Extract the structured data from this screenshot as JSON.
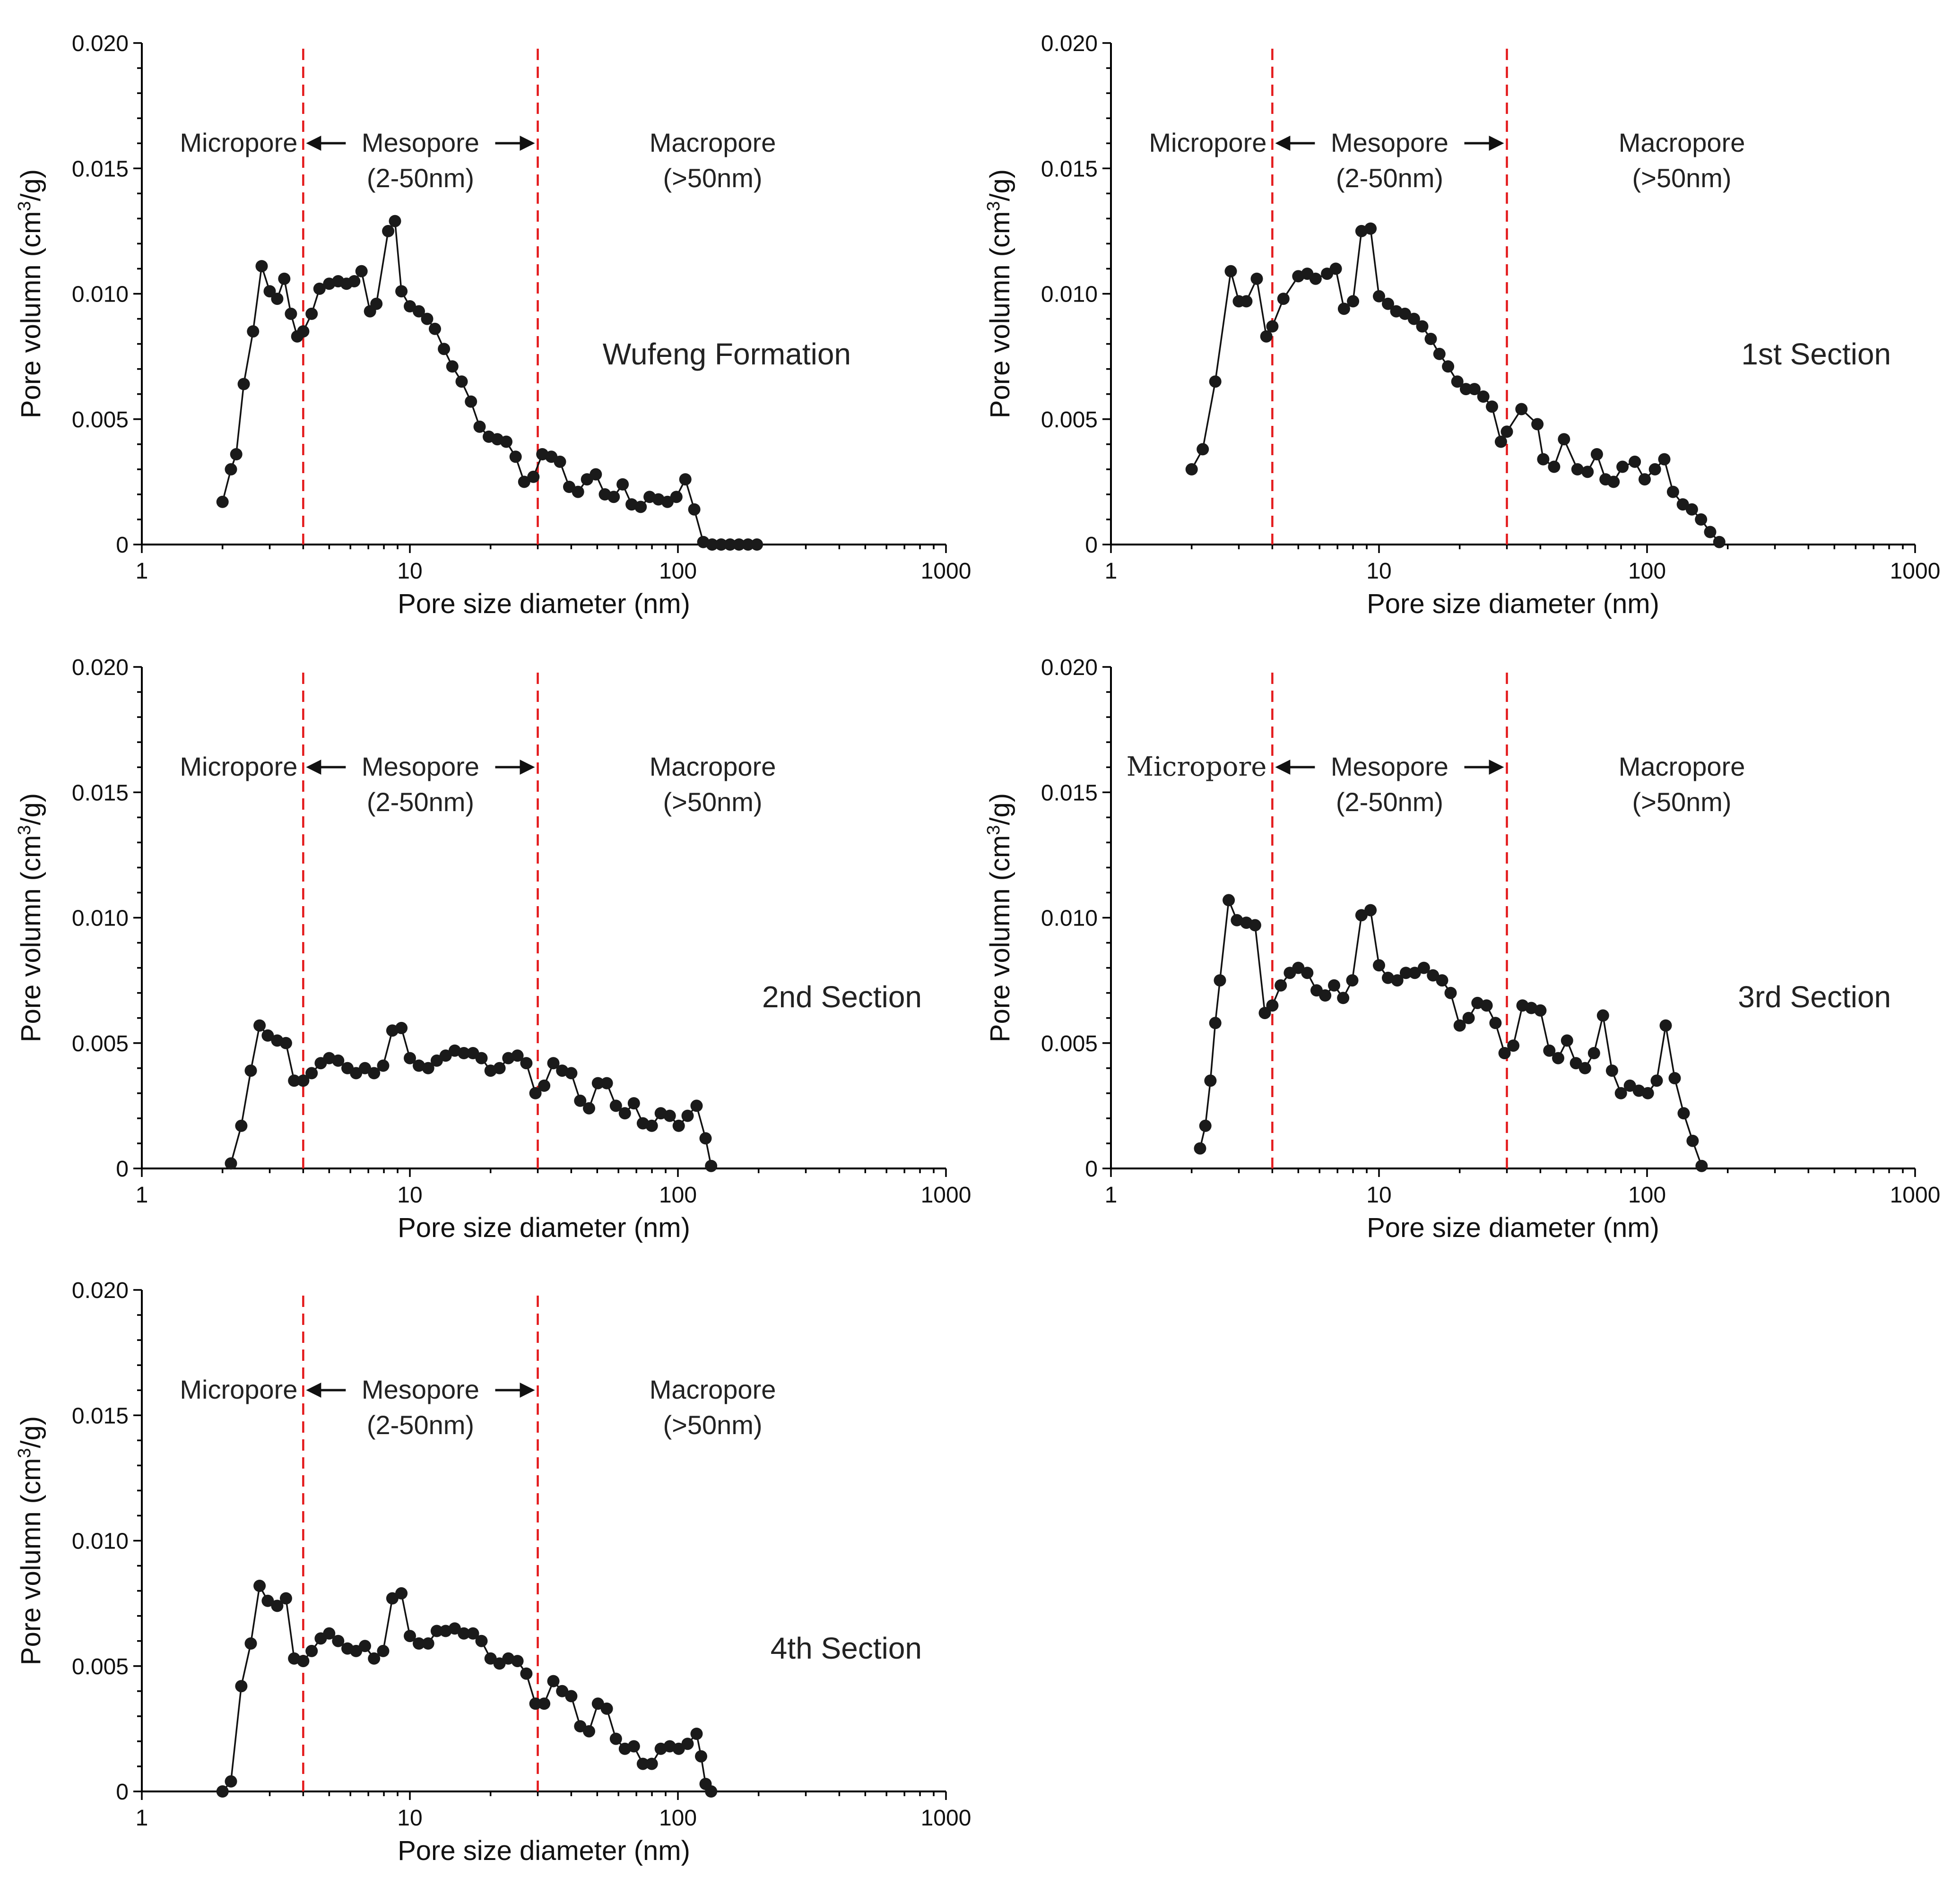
{
  "chart_data": [
    {
      "type": "scatter",
      "panel_label": "Wufeng Formation",
      "xlabel": "Pore size diameter (nm)",
      "ylabel": "Pore volumn (cm3/g)",
      "xscale": "log",
      "xlim": [
        1,
        1000
      ],
      "ylim": [
        0,
        0.02
      ],
      "xticks": [
        "1",
        "10",
        "100",
        "1000"
      ],
      "yticks": [
        "0",
        "0.005",
        "0.010",
        "0.015",
        "0.020"
      ],
      "boundaries": [
        4,
        30
      ],
      "zones": {
        "micro": "Micropore",
        "meso": "Mesopore",
        "meso_range": "(2-50nm)",
        "macro": "Macropore",
        "macro_range": "(>50nm)"
      },
      "x": [
        2.0,
        2.15,
        2.25,
        2.4,
        2.6,
        2.8,
        3.0,
        3.2,
        3.4,
        3.6,
        3.8,
        4.0,
        4.3,
        4.6,
        5.0,
        5.4,
        5.8,
        6.2,
        6.6,
        7.1,
        7.5,
        8.3,
        8.8,
        9.3,
        10.0,
        10.8,
        11.6,
        12.4,
        13.4,
        14.4,
        15.6,
        16.9,
        18.2,
        19.7,
        21.2,
        22.9,
        24.8,
        26.7,
        28.9,
        31.2,
        33.7,
        36.3,
        39.3,
        42.4,
        45.8,
        49.4,
        53.4,
        57.6,
        62.2,
        67.2,
        72.6,
        78.4,
        84.6,
        91.4,
        98.7,
        106.6,
        115.1,
        124.3,
        134.2,
        145.0,
        156.5,
        169.0,
        182.6,
        197.1
      ],
      "y": [
        0.0017,
        0.003,
        0.0036,
        0.0064,
        0.0085,
        0.0111,
        0.0101,
        0.0098,
        0.0106,
        0.0092,
        0.0083,
        0.0085,
        0.0092,
        0.0102,
        0.0104,
        0.0105,
        0.0104,
        0.0105,
        0.0109,
        0.0093,
        0.0096,
        0.0125,
        0.0129,
        0.0101,
        0.0095,
        0.0093,
        0.009,
        0.0086,
        0.0078,
        0.0071,
        0.0065,
        0.0057,
        0.0047,
        0.0043,
        0.0042,
        0.0041,
        0.0035,
        0.0025,
        0.0027,
        0.0036,
        0.0035,
        0.0033,
        0.0023,
        0.0021,
        0.0026,
        0.0028,
        0.002,
        0.0019,
        0.0024,
        0.0016,
        0.0015,
        0.0019,
        0.0018,
        0.0017,
        0.0019,
        0.0026,
        0.0014,
        0.0001,
        0.0,
        0.0,
        0.0,
        0.0,
        0.0,
        0.0
      ]
    },
    {
      "type": "scatter",
      "panel_label": "1st Section",
      "xlabel": "Pore size diameter (nm)",
      "ylabel": "Pore volumn (cm3/g)",
      "xscale": "log",
      "xlim": [
        1,
        1000
      ],
      "ylim": [
        0,
        0.02
      ],
      "xticks": [
        "1",
        "10",
        "100",
        "1000"
      ],
      "yticks": [
        "0",
        "0.005",
        "0.010",
        "0.015",
        "0.020"
      ],
      "boundaries": [
        4,
        30
      ],
      "zones": {
        "micro": "Micropore",
        "meso": "Mesopore",
        "meso_range": "(2-50nm)",
        "macro": "Macropore",
        "macro_range": "(>50nm)"
      },
      "x": [
        2.0,
        2.2,
        2.45,
        2.8,
        3.0,
        3.2,
        3.5,
        3.8,
        4.0,
        4.4,
        5.0,
        5.4,
        5.8,
        6.4,
        6.9,
        7.4,
        8.0,
        8.6,
        9.3,
        10.0,
        10.8,
        11.6,
        12.5,
        13.5,
        14.5,
        15.6,
        16.8,
        18.1,
        19.6,
        21.1,
        22.7,
        24.5,
        26.4,
        28.5,
        30.0,
        34.0,
        39.0,
        41.0,
        45.0,
        49.0,
        55.0,
        60.0,
        65.0,
        70.0,
        75.0,
        81.0,
        90.0,
        98.0,
        107.0,
        116.0,
        125.0,
        136.0,
        147.0,
        159.0,
        172.0,
        186.0
      ],
      "y": [
        0.003,
        0.0038,
        0.0065,
        0.0109,
        0.0097,
        0.0097,
        0.0106,
        0.0083,
        0.0087,
        0.0098,
        0.0107,
        0.0108,
        0.0106,
        0.0108,
        0.011,
        0.0094,
        0.0097,
        0.0125,
        0.0126,
        0.0099,
        0.0096,
        0.0093,
        0.0092,
        0.009,
        0.0087,
        0.0082,
        0.0076,
        0.0071,
        0.0065,
        0.0062,
        0.0062,
        0.0059,
        0.0055,
        0.0041,
        0.0045,
        0.0054,
        0.0048,
        0.0034,
        0.0031,
        0.0042,
        0.003,
        0.0029,
        0.0036,
        0.0026,
        0.0025,
        0.0031,
        0.0033,
        0.0026,
        0.003,
        0.0034,
        0.0021,
        0.0016,
        0.0014,
        0.001,
        0.0005,
        0.0001
      ]
    },
    {
      "type": "scatter",
      "panel_label": "2nd Section",
      "xlabel": "Pore size diameter (nm)",
      "ylabel": "Pore volumn (cm3/g)",
      "xscale": "log",
      "xlim": [
        1,
        1000
      ],
      "ylim": [
        0,
        0.02
      ],
      "xticks": [
        "1",
        "10",
        "100",
        "1000"
      ],
      "yticks": [
        "0",
        "0.005",
        "0.010",
        "0.015",
        "0.020"
      ],
      "boundaries": [
        4,
        30
      ],
      "zones": {
        "micro": "Micropore",
        "meso": "Mesopore",
        "meso_range": "(2-50nm)",
        "macro": "Macropore",
        "macro_range": "(>50nm)"
      },
      "x": [
        2.15,
        2.35,
        2.55,
        2.75,
        2.95,
        3.2,
        3.45,
        3.7,
        4.0,
        4.3,
        4.65,
        5.0,
        5.4,
        5.85,
        6.3,
        6.8,
        7.35,
        7.95,
        8.6,
        9.3,
        10.0,
        10.8,
        11.7,
        12.6,
        13.6,
        14.7,
        15.9,
        17.2,
        18.5,
        20.0,
        21.6,
        23.3,
        25.2,
        27.2,
        29.4,
        31.7,
        34.3,
        37.0,
        40.0,
        43.2,
        46.6,
        50.3,
        54.3,
        58.7,
        63.4,
        68.5,
        74.0,
        79.9,
        86.3,
        93.2,
        100.7,
        108.7,
        117.4,
        126.8,
        133.0
      ],
      "y": [
        0.0002,
        0.0017,
        0.0039,
        0.0057,
        0.0053,
        0.0051,
        0.005,
        0.0035,
        0.0035,
        0.0038,
        0.0042,
        0.0044,
        0.0043,
        0.004,
        0.0038,
        0.004,
        0.0038,
        0.0041,
        0.0055,
        0.0056,
        0.0044,
        0.0041,
        0.004,
        0.0043,
        0.0045,
        0.0047,
        0.0046,
        0.0046,
        0.0044,
        0.0039,
        0.004,
        0.0044,
        0.0045,
        0.0042,
        0.003,
        0.0033,
        0.0042,
        0.0039,
        0.0038,
        0.0027,
        0.0024,
        0.0034,
        0.0034,
        0.0025,
        0.0022,
        0.0026,
        0.0018,
        0.0017,
        0.0022,
        0.0021,
        0.0017,
        0.0021,
        0.0025,
        0.0012,
        0.0001
      ]
    },
    {
      "type": "scatter",
      "panel_label": "3rd Section",
      "xlabel": "Pore size diameter (nm)",
      "ylabel": "Pore volumn (cm3/g)",
      "xscale": "log",
      "xlim": [
        1,
        1000
      ],
      "ylim": [
        0,
        0.02
      ],
      "xticks": [
        "1",
        "10",
        "100",
        "1000"
      ],
      "yticks": [
        "0",
        "0.005",
        "0.010",
        "0.015",
        "0.020"
      ],
      "boundaries": [
        4,
        30
      ],
      "zones": {
        "micro": "Micropore",
        "meso": "Mesopore",
        "meso_range": "(2-50nm)",
        "macro": "Macropore",
        "macro_range": "(>50nm)"
      },
      "x": [
        2.15,
        2.25,
        2.35,
        2.45,
        2.55,
        2.75,
        2.95,
        3.2,
        3.45,
        3.75,
        4.0,
        4.3,
        4.65,
        5.0,
        5.4,
        5.85,
        6.3,
        6.8,
        7.35,
        7.95,
        8.6,
        9.3,
        10.0,
        10.8,
        11.7,
        12.6,
        13.6,
        14.7,
        15.9,
        17.2,
        18.5,
        20.0,
        21.6,
        23.3,
        25.2,
        27.2,
        29.4,
        31.7,
        34.3,
        37.0,
        40.0,
        43.2,
        46.6,
        50.3,
        54.3,
        58.7,
        63.4,
        68.5,
        74.0,
        79.9,
        86.3,
        93.2,
        100.7,
        108.7,
        117.4,
        126.8,
        137.0,
        147.9,
        159.8
      ],
      "y": [
        0.0008,
        0.0017,
        0.0035,
        0.0058,
        0.0075,
        0.0107,
        0.0099,
        0.0098,
        0.0097,
        0.0062,
        0.0065,
        0.0073,
        0.0078,
        0.008,
        0.0078,
        0.0071,
        0.0069,
        0.0073,
        0.0068,
        0.0075,
        0.0101,
        0.0103,
        0.0081,
        0.0076,
        0.0075,
        0.0078,
        0.0078,
        0.008,
        0.0077,
        0.0075,
        0.007,
        0.0057,
        0.006,
        0.0066,
        0.0065,
        0.0058,
        0.0046,
        0.0049,
        0.0065,
        0.0064,
        0.0063,
        0.0047,
        0.0044,
        0.0051,
        0.0042,
        0.004,
        0.0046,
        0.0061,
        0.0039,
        0.003,
        0.0033,
        0.0031,
        0.003,
        0.0035,
        0.0057,
        0.0036,
        0.0022,
        0.0011,
        0.0001
      ]
    },
    {
      "type": "scatter",
      "panel_label": "4th Section",
      "xlabel": "Pore size diameter (nm)",
      "ylabel": "Pore volumn (cm3/g)",
      "xscale": "log",
      "xlim": [
        1,
        1000
      ],
      "ylim": [
        0,
        0.02
      ],
      "xticks": [
        "1",
        "10",
        "100",
        "1000"
      ],
      "yticks": [
        "0",
        "0.005",
        "0.010",
        "0.015",
        "0.020"
      ],
      "boundaries": [
        4,
        30
      ],
      "zones": {
        "micro": "Micropore",
        "meso": "Mesopore",
        "meso_range": "(2-50nm)",
        "macro": "Macropore",
        "macro_range": "(>50nm)"
      },
      "x": [
        2.0,
        2.15,
        2.35,
        2.55,
        2.75,
        2.95,
        3.2,
        3.45,
        3.7,
        4.0,
        4.3,
        4.65,
        5.0,
        5.4,
        5.85,
        6.3,
        6.8,
        7.35,
        7.95,
        8.6,
        9.3,
        10.0,
        10.8,
        11.7,
        12.6,
        13.6,
        14.7,
        15.9,
        17.2,
        18.5,
        20.0,
        21.6,
        23.3,
        25.2,
        27.2,
        29.4,
        31.7,
        34.3,
        37.0,
        40.0,
        43.2,
        46.6,
        50.3,
        54.3,
        58.7,
        63.4,
        68.5,
        74.0,
        79.9,
        86.3,
        93.2,
        100.7,
        108.7,
        117.4,
        122.0,
        126.8,
        133.0
      ],
      "y": [
        0.0,
        0.0004,
        0.0042,
        0.0059,
        0.0082,
        0.0076,
        0.0074,
        0.0077,
        0.0053,
        0.0052,
        0.0056,
        0.0061,
        0.0063,
        0.006,
        0.0057,
        0.0056,
        0.0058,
        0.0053,
        0.0056,
        0.0077,
        0.0079,
        0.0062,
        0.0059,
        0.0059,
        0.0064,
        0.0064,
        0.0065,
        0.0063,
        0.0063,
        0.006,
        0.0053,
        0.0051,
        0.0053,
        0.0052,
        0.0047,
        0.0035,
        0.0035,
        0.0044,
        0.004,
        0.0038,
        0.0026,
        0.0024,
        0.0035,
        0.0033,
        0.0021,
        0.0017,
        0.0018,
        0.0011,
        0.0011,
        0.0017,
        0.0018,
        0.0017,
        0.0019,
        0.0023,
        0.0014,
        0.0003,
        0.0
      ]
    }
  ]
}
